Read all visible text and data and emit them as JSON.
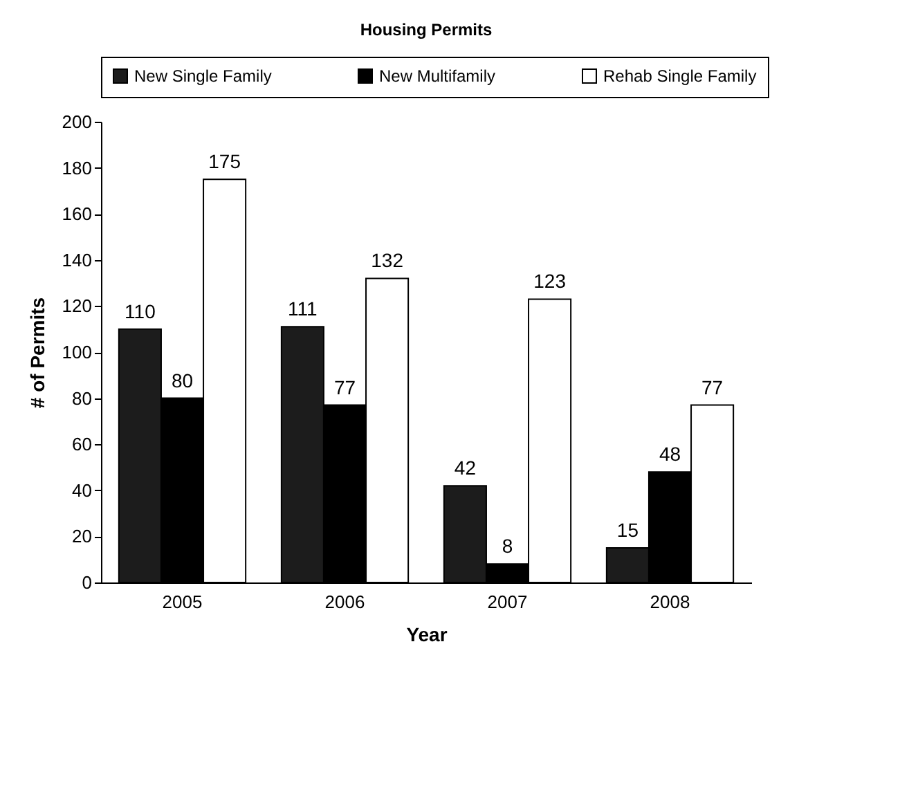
{
  "chart_data": {
    "type": "bar",
    "title": "Housing Permits",
    "xlabel": "Year",
    "ylabel": "# of Permits",
    "categories": [
      "2005",
      "2006",
      "2007",
      "2008"
    ],
    "series": [
      {
        "name": "New Single Family",
        "color": "#1c1c1c",
        "values": [
          110,
          111,
          42,
          15
        ]
      },
      {
        "name": "New Multifamily",
        "color": "#000000",
        "values": [
          80,
          77,
          8,
          48
        ]
      },
      {
        "name": "Rehab Single Family",
        "color": "#ffffff",
        "values": [
          175,
          132,
          123,
          77
        ]
      }
    ],
    "ylim": [
      0,
      200
    ],
    "yticks": [
      0,
      20,
      40,
      60,
      80,
      100,
      120,
      140,
      160,
      180,
      200
    ],
    "data_labels": true,
    "legend": "top",
    "grid": false
  }
}
